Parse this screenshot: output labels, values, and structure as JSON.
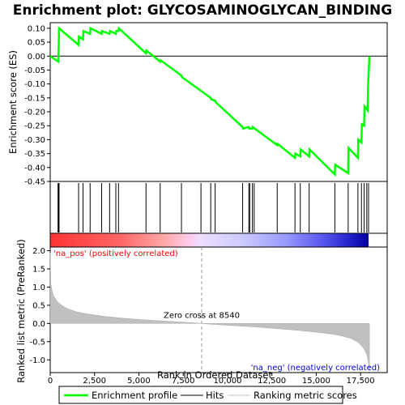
{
  "chart_data": {
    "type": "line",
    "title": "Enrichment plot: GLYCOSAMINOGLYCAN_BINDING",
    "es_panel": {
      "ylabel": "Enrichment score (ES)",
      "ylim": [
        -0.45,
        0.12
      ],
      "yticks": [
        "0.10",
        "0.05",
        "0.00",
        "-0.05",
        "-0.10",
        "-0.15",
        "-0.20",
        "-0.25",
        "-0.30",
        "-0.35",
        "-0.40",
        "-0.45"
      ],
      "ytick_values": [
        0.1,
        0.05,
        0.0,
        -0.05,
        -0.1,
        -0.15,
        -0.2,
        -0.25,
        -0.3,
        -0.35,
        -0.4,
        -0.45
      ],
      "series": [
        {
          "name": "Enrichment profile",
          "color": "#00ff00",
          "x": [
            0,
            450,
            480,
            500,
            1600,
            1620,
            1850,
            1870,
            2250,
            2270,
            2900,
            2920,
            3350,
            3370,
            3700,
            3720,
            3850,
            3870,
            5400,
            5420,
            6200,
            6220,
            7400,
            7420,
            9050,
            9070,
            9300,
            9320,
            10850,
            10870,
            11200,
            11220,
            11400,
            11420,
            12800,
            12820,
            13800,
            13820,
            14100,
            14120,
            14600,
            14620,
            16050,
            16070,
            16800,
            16820,
            17350,
            17370,
            17550,
            17570,
            17700,
            17720,
            17900,
            17920,
            18000
          ],
          "y": [
            0.0,
            -0.02,
            0.04,
            0.1,
            0.04,
            0.07,
            0.06,
            0.09,
            0.08,
            0.1,
            0.08,
            0.09,
            0.08,
            0.09,
            0.08,
            0.09,
            0.09,
            0.1,
            0.01,
            0.02,
            -0.02,
            -0.015,
            -0.07,
            -0.075,
            -0.15,
            -0.155,
            -0.16,
            -0.165,
            -0.255,
            -0.26,
            -0.255,
            -0.26,
            -0.26,
            -0.255,
            -0.32,
            -0.315,
            -0.365,
            -0.35,
            -0.36,
            -0.335,
            -0.36,
            -0.335,
            -0.425,
            -0.39,
            -0.42,
            -0.33,
            -0.365,
            -0.3,
            -0.31,
            -0.245,
            -0.25,
            -0.18,
            -0.195,
            -0.105,
            0.0
          ]
        }
      ]
    },
    "hits": [
      440,
      470,
      500,
      1600,
      1850,
      2250,
      2900,
      3350,
      3700,
      3850,
      5400,
      6200,
      7400,
      8500,
      9050,
      9300,
      10850,
      11200,
      11250,
      11400,
      11500,
      12800,
      13800,
      14100,
      14600,
      16050,
      16800,
      17350,
      17550,
      17700,
      17850,
      17950
    ],
    "rank_panel": {
      "ylabel": "Ranked list metric (PreRanked)",
      "xlabel": "Rank in Ordered Dataset",
      "ylim": [
        -1.35,
        2.1
      ],
      "yticks": [
        "2.0",
        "1.5",
        "1.0",
        "0.5",
        "0.0",
        "-0.5",
        "-1.0"
      ],
      "ytick_values": [
        2.0,
        1.5,
        1.0,
        0.5,
        0.0,
        -0.5,
        -1.0
      ],
      "xlim": [
        0,
        19000
      ],
      "xticks": [
        "0",
        "2,500",
        "5,000",
        "7,500",
        "10,000",
        "12,500",
        "15,000",
        "17,500"
      ],
      "xtick_values": [
        0,
        2500,
        5000,
        7500,
        10000,
        12500,
        15000,
        17500
      ],
      "metric_profile": {
        "name": "Ranking metric scores",
        "x": [
          0,
          30,
          100,
          200,
          400,
          700,
          1000,
          1500,
          2000,
          3000,
          4000,
          5000,
          6000,
          7000,
          8000,
          8540,
          9000,
          10000,
          11000,
          12000,
          13000,
          14000,
          15000,
          16000,
          16500,
          17000,
          17300,
          17500,
          17700,
          17850,
          17950,
          18000
        ],
        "y": [
          1.95,
          1.1,
          0.9,
          0.75,
          0.6,
          0.48,
          0.4,
          0.32,
          0.27,
          0.2,
          0.15,
          0.11,
          0.08,
          0.05,
          0.02,
          0.0,
          -0.02,
          -0.05,
          -0.08,
          -0.11,
          -0.15,
          -0.19,
          -0.24,
          -0.3,
          -0.35,
          -0.42,
          -0.5,
          -0.58,
          -0.7,
          -0.85,
          -1.1,
          -1.32
        ]
      },
      "zero_cross_label": "Zero cross at 8540",
      "zero_cross": 8540,
      "pos_label": "'na_pos' (positively correlated)",
      "neg_label": "'na_neg' (negatively correlated)"
    },
    "legend": {
      "placement": "bottom",
      "entries": [
        {
          "label": "Enrichment profile",
          "color": "#00ff00"
        },
        {
          "label": "Hits",
          "color": "#000000"
        },
        {
          "label": "Ranking metric scores",
          "color": "#c0c0c0"
        }
      ]
    },
    "colors": {
      "profile": "#00ff00",
      "pos_text": "#ff0000",
      "neg_text": "#0000cc",
      "metric_fill": "#c0c0c0"
    }
  }
}
